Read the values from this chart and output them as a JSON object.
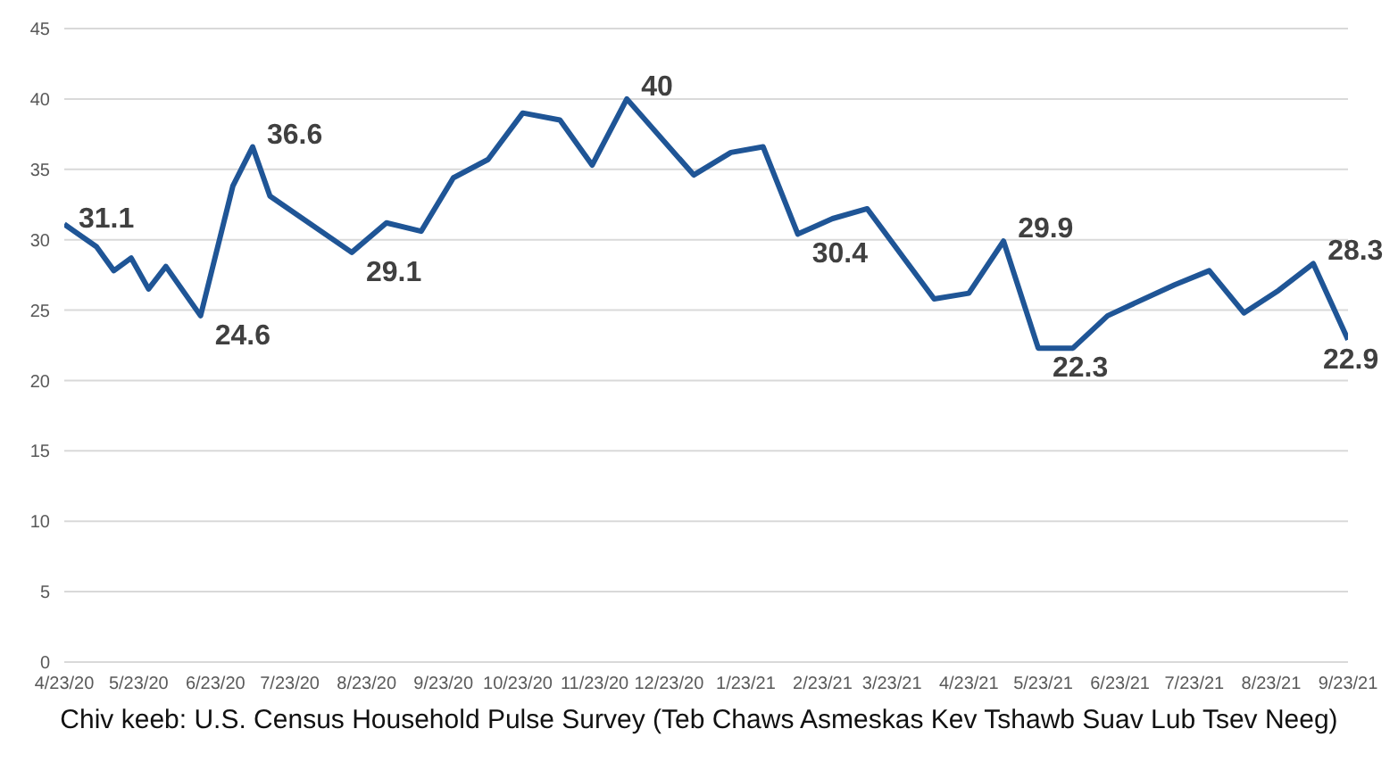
{
  "chart_data": {
    "type": "line",
    "x": [
      "2020-04-23",
      "2020-05-06",
      "2020-05-13",
      "2020-05-20",
      "2020-05-27",
      "2020-06-03",
      "2020-06-17",
      "2020-06-30",
      "2020-07-08",
      "2020-07-15",
      "2020-08-17",
      "2020-08-31",
      "2020-09-14",
      "2020-09-27",
      "2020-10-11",
      "2020-10-25",
      "2020-11-09",
      "2020-11-22",
      "2020-12-06",
      "2021-01-02",
      "2021-01-17",
      "2021-01-30",
      "2021-02-13",
      "2021-02-27",
      "2021-03-13",
      "2021-04-09",
      "2021-04-23",
      "2021-05-07",
      "2021-05-21",
      "2021-06-04",
      "2021-06-18",
      "2021-07-15",
      "2021-07-29",
      "2021-08-12",
      "2021-08-26",
      "2021-09-09",
      "2021-09-23"
    ],
    "series": [
      {
        "color": "#1f5596",
        "values": [
          31.1,
          29.5,
          27.8,
          28.7,
          26.5,
          28.1,
          24.6,
          33.8,
          36.6,
          33.1,
          29.1,
          31.2,
          30.6,
          34.4,
          35.7,
          39.0,
          38.5,
          35.3,
          40,
          34.6,
          36.2,
          36.6,
          30.4,
          31.5,
          32.2,
          25.8,
          26.2,
          29.9,
          22.3,
          22.3,
          24.6,
          26.8,
          27.8,
          24.8,
          26.4,
          28.3,
          22.9
        ],
        "value_labels": [
          "31.1",
          null,
          null,
          null,
          null,
          null,
          "24.6",
          null,
          "36.6",
          null,
          "29.1",
          null,
          null,
          null,
          null,
          null,
          null,
          null,
          "40",
          null,
          null,
          null,
          "30.4",
          null,
          null,
          null,
          null,
          "29.9",
          "22.3",
          null,
          null,
          null,
          null,
          null,
          null,
          "28.3",
          "22.9"
        ]
      }
    ],
    "xlim": [
      "2020-04-23",
      "2021-09-23"
    ],
    "xticks": [
      {
        "value": "2020-04-23",
        "label": "4/23/20"
      },
      {
        "value": "2020-05-23",
        "label": "5/23/20"
      },
      {
        "value": "2020-06-23",
        "label": "6/23/20"
      },
      {
        "value": "2020-07-23",
        "label": "7/23/20"
      },
      {
        "value": "2020-08-23",
        "label": "8/23/20"
      },
      {
        "value": "2020-09-23",
        "label": "9/23/20"
      },
      {
        "value": "2020-10-23",
        "label": "10/23/20"
      },
      {
        "value": "2020-11-23",
        "label": "11/23/20"
      },
      {
        "value": "2020-12-23",
        "label": "12/23/20"
      },
      {
        "value": "2021-01-23",
        "label": "1/23/21"
      },
      {
        "value": "2021-02-23",
        "label": "2/23/21"
      },
      {
        "value": "2021-03-23",
        "label": "3/23/21"
      },
      {
        "value": "2021-04-23",
        "label": "4/23/21"
      },
      {
        "value": "2021-05-23",
        "label": "5/23/21"
      },
      {
        "value": "2021-06-23",
        "label": "6/23/21"
      },
      {
        "value": "2021-07-23",
        "label": "7/23/21"
      },
      {
        "value": "2021-08-23",
        "label": "8/23/21"
      },
      {
        "value": "2021-09-23",
        "label": "9/23/21"
      }
    ],
    "ylim": [
      0,
      45
    ],
    "yticks": [
      0,
      5,
      10,
      15,
      20,
      25,
      30,
      35,
      40,
      45
    ],
    "grid": "y",
    "legend": false,
    "marker": "none",
    "line_style": "solid",
    "annotations": [
      "Chiv keeb: U.S. Census Household Pulse Survey (Teb Chaws Asmeskas Kev Tshawb Suav Lub Tsev Neeg)"
    ]
  }
}
